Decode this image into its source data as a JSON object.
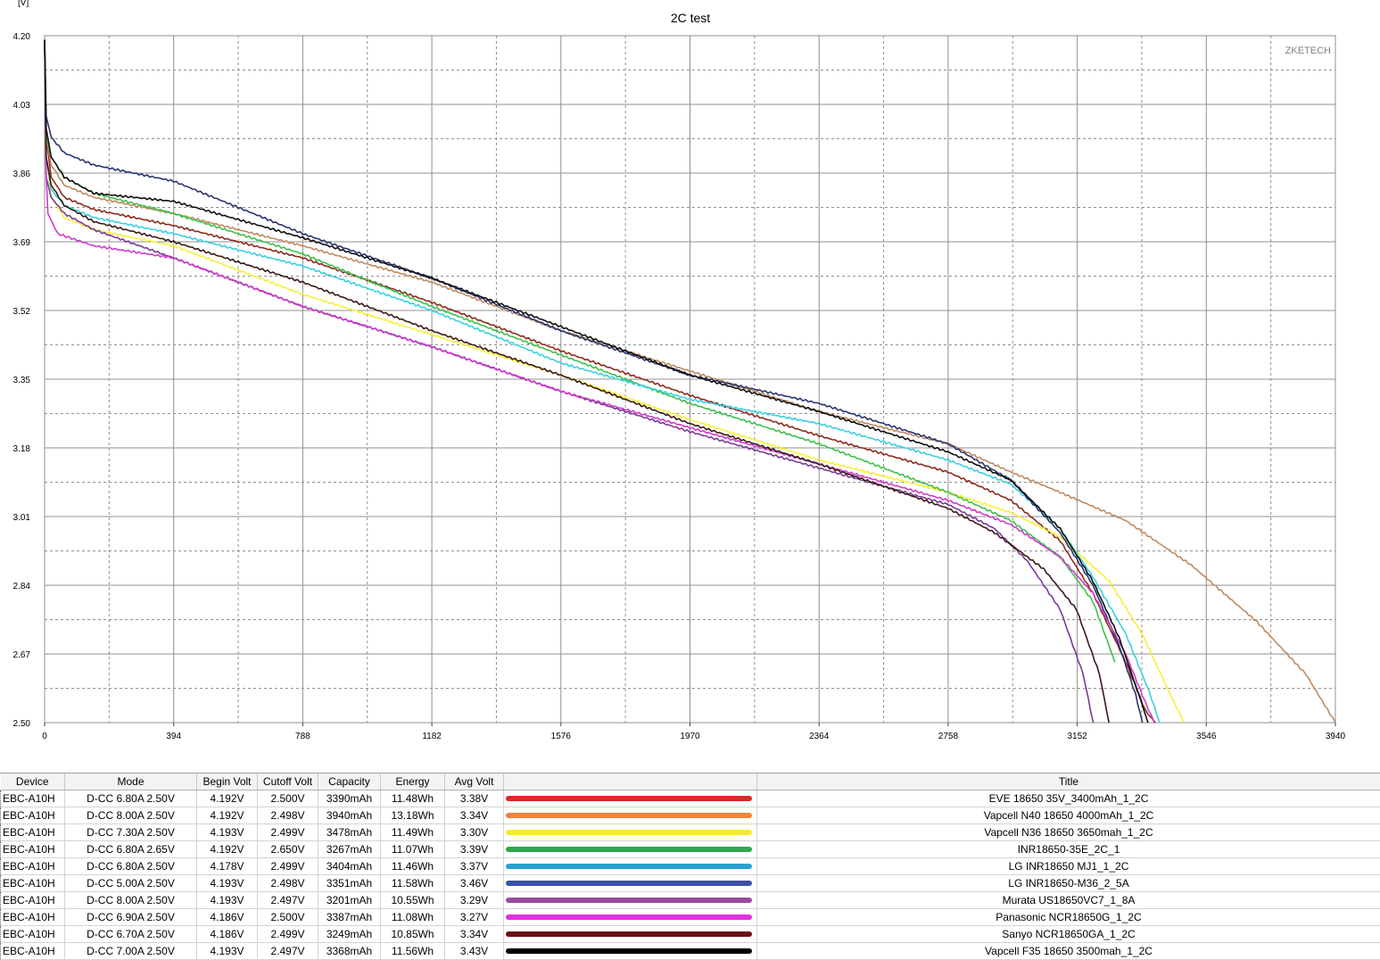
{
  "chart_data": {
    "type": "line",
    "title": "2C test",
    "ylabel": "[V]",
    "xlabel": "",
    "watermark": "ZKETECH",
    "xlim": [
      0,
      3940
    ],
    "ylim": [
      2.5,
      4.2
    ],
    "x_ticks": [
      "0",
      "394",
      "788",
      "1182",
      "1576",
      "1970",
      "2364",
      "2758",
      "3152",
      "3546",
      "3940"
    ],
    "y_ticks": [
      "4.20",
      "4.03",
      "3.86",
      "3.69",
      "3.52",
      "3.35",
      "3.18",
      "3.01",
      "2.84",
      "2.67",
      "2.50"
    ],
    "grid": true,
    "series": [
      {
        "name": "EVE 18650 35V_3400mAh_1_2C",
        "color": "#8b2a1e",
        "points": [
          [
            0,
            4.19
          ],
          [
            5,
            3.95
          ],
          [
            20,
            3.85
          ],
          [
            60,
            3.8
          ],
          [
            150,
            3.77
          ],
          [
            394,
            3.73
          ],
          [
            788,
            3.65
          ],
          [
            1182,
            3.54
          ],
          [
            1576,
            3.42
          ],
          [
            1970,
            3.31
          ],
          [
            2364,
            3.21
          ],
          [
            2758,
            3.12
          ],
          [
            2950,
            3.05
          ],
          [
            3100,
            2.95
          ],
          [
            3200,
            2.82
          ],
          [
            3300,
            2.65
          ],
          [
            3360,
            2.53
          ],
          [
            3390,
            2.5
          ]
        ]
      },
      {
        "name": "Vapcell N40 18650 4000mAh_1_2C",
        "color": "#c08a60",
        "points": [
          [
            0,
            4.19
          ],
          [
            5,
            3.95
          ],
          [
            20,
            3.88
          ],
          [
            60,
            3.83
          ],
          [
            150,
            3.8
          ],
          [
            394,
            3.76
          ],
          [
            788,
            3.68
          ],
          [
            1182,
            3.59
          ],
          [
            1576,
            3.47
          ],
          [
            1970,
            3.37
          ],
          [
            2364,
            3.27
          ],
          [
            2758,
            3.19
          ],
          [
            2950,
            3.12
          ],
          [
            3100,
            3.07
          ],
          [
            3300,
            3.0
          ],
          [
            3500,
            2.89
          ],
          [
            3700,
            2.75
          ],
          [
            3850,
            2.62
          ],
          [
            3940,
            2.5
          ]
        ]
      },
      {
        "name": "Vapcell N36 18650 3650mah_1_2C",
        "color": "#f4f03c",
        "points": [
          [
            0,
            4.19
          ],
          [
            5,
            3.9
          ],
          [
            20,
            3.8
          ],
          [
            60,
            3.75
          ],
          [
            150,
            3.72
          ],
          [
            394,
            3.68
          ],
          [
            788,
            3.56
          ],
          [
            1182,
            3.46
          ],
          [
            1576,
            3.36
          ],
          [
            1970,
            3.25
          ],
          [
            2364,
            3.15
          ],
          [
            2758,
            3.07
          ],
          [
            2950,
            3.02
          ],
          [
            3100,
            2.96
          ],
          [
            3250,
            2.85
          ],
          [
            3350,
            2.72
          ],
          [
            3430,
            2.58
          ],
          [
            3478,
            2.5
          ]
        ]
      },
      {
        "name": "INR18650-35E_2C_1",
        "color": "#3ec04a",
        "points": [
          [
            0,
            4.19
          ],
          [
            5,
            3.95
          ],
          [
            20,
            3.9
          ],
          [
            60,
            3.85
          ],
          [
            150,
            3.81
          ],
          [
            394,
            3.76
          ],
          [
            788,
            3.66
          ],
          [
            1182,
            3.53
          ],
          [
            1576,
            3.41
          ],
          [
            1970,
            3.29
          ],
          [
            2364,
            3.19
          ],
          [
            2758,
            3.07
          ],
          [
            2950,
            3.0
          ],
          [
            3100,
            2.91
          ],
          [
            3200,
            2.8
          ],
          [
            3267,
            2.65
          ]
        ]
      },
      {
        "name": "LG INR18650 MJ1_1_2C",
        "color": "#3ad0e0",
        "points": [
          [
            0,
            4.19
          ],
          [
            5,
            3.9
          ],
          [
            20,
            3.82
          ],
          [
            60,
            3.78
          ],
          [
            150,
            3.75
          ],
          [
            394,
            3.71
          ],
          [
            788,
            3.63
          ],
          [
            1182,
            3.52
          ],
          [
            1576,
            3.39
          ],
          [
            1970,
            3.3
          ],
          [
            2364,
            3.24
          ],
          [
            2758,
            3.15
          ],
          [
            2950,
            3.09
          ],
          [
            3100,
            2.98
          ],
          [
            3200,
            2.86
          ],
          [
            3300,
            2.72
          ],
          [
            3370,
            2.58
          ],
          [
            3404,
            2.5
          ]
        ]
      },
      {
        "name": "LG INR18650-M36_2_5A",
        "color": "#2a3570",
        "points": [
          [
            0,
            4.19
          ],
          [
            5,
            4.0
          ],
          [
            20,
            3.95
          ],
          [
            60,
            3.91
          ],
          [
            150,
            3.88
          ],
          [
            394,
            3.84
          ],
          [
            788,
            3.71
          ],
          [
            1182,
            3.6
          ],
          [
            1576,
            3.47
          ],
          [
            1970,
            3.36
          ],
          [
            2364,
            3.29
          ],
          [
            2758,
            3.19
          ],
          [
            2950,
            3.1
          ],
          [
            3100,
            2.97
          ],
          [
            3200,
            2.84
          ],
          [
            3280,
            2.69
          ],
          [
            3330,
            2.57
          ],
          [
            3351,
            2.5
          ]
        ]
      },
      {
        "name": "Murata US18650VC7_1_8A",
        "color": "#7a3a98",
        "points": [
          [
            0,
            4.19
          ],
          [
            5,
            3.85
          ],
          [
            20,
            3.8
          ],
          [
            60,
            3.76
          ],
          [
            150,
            3.72
          ],
          [
            394,
            3.65
          ],
          [
            788,
            3.53
          ],
          [
            1182,
            3.43
          ],
          [
            1576,
            3.32
          ],
          [
            1970,
            3.22
          ],
          [
            2364,
            3.13
          ],
          [
            2758,
            3.04
          ],
          [
            2900,
            2.98
          ],
          [
            3000,
            2.9
          ],
          [
            3100,
            2.78
          ],
          [
            3170,
            2.62
          ],
          [
            3201,
            2.5
          ]
        ]
      },
      {
        "name": "Panasonic NCR18650G_1_2C",
        "color": "#cc3ccc",
        "points": [
          [
            0,
            4.19
          ],
          [
            5,
            3.85
          ],
          [
            10,
            3.76
          ],
          [
            40,
            3.71
          ],
          [
            150,
            3.68
          ],
          [
            394,
            3.65
          ],
          [
            788,
            3.53
          ],
          [
            1182,
            3.43
          ],
          [
            1576,
            3.32
          ],
          [
            1970,
            3.23
          ],
          [
            2364,
            3.14
          ],
          [
            2758,
            3.05
          ],
          [
            2950,
            2.99
          ],
          [
            3100,
            2.91
          ],
          [
            3200,
            2.82
          ],
          [
            3300,
            2.67
          ],
          [
            3360,
            2.55
          ],
          [
            3387,
            2.5
          ]
        ]
      },
      {
        "name": "Sanyo NCR18650GA_1_2C",
        "color": "#3a1a14",
        "points": [
          [
            0,
            4.19
          ],
          [
            5,
            3.9
          ],
          [
            20,
            3.83
          ],
          [
            60,
            3.78
          ],
          [
            150,
            3.74
          ],
          [
            394,
            3.69
          ],
          [
            788,
            3.59
          ],
          [
            1182,
            3.47
          ],
          [
            1576,
            3.36
          ],
          [
            1970,
            3.24
          ],
          [
            2364,
            3.14
          ],
          [
            2758,
            3.03
          ],
          [
            2900,
            2.97
          ],
          [
            3050,
            2.88
          ],
          [
            3150,
            2.78
          ],
          [
            3220,
            2.62
          ],
          [
            3249,
            2.5
          ]
        ]
      },
      {
        "name": "Vapcell F35 18650 3500mah_1_2C",
        "color": "#101010",
        "points": [
          [
            0,
            4.19
          ],
          [
            5,
            3.97
          ],
          [
            20,
            3.9
          ],
          [
            60,
            3.85
          ],
          [
            150,
            3.81
          ],
          [
            394,
            3.79
          ],
          [
            788,
            3.7
          ],
          [
            1182,
            3.6
          ],
          [
            1576,
            3.48
          ],
          [
            1970,
            3.36
          ],
          [
            2364,
            3.27
          ],
          [
            2758,
            3.17
          ],
          [
            2950,
            3.1
          ],
          [
            3100,
            2.98
          ],
          [
            3200,
            2.85
          ],
          [
            3280,
            2.71
          ],
          [
            3340,
            2.57
          ],
          [
            3368,
            2.5
          ]
        ]
      }
    ]
  },
  "table": {
    "headers": {
      "device": "Device",
      "mode": "Mode",
      "begin_volt": "Begin Volt",
      "cutoff_volt": "Cutoff Volt",
      "capacity": "Capacity",
      "energy": "Energy",
      "avg_volt": "Avg Volt",
      "title": "Title"
    },
    "rows": [
      {
        "device": "EBC-A10H",
        "mode": "D-CC  6.80A  2.50V",
        "begin_volt": "4.192V",
        "cutoff_volt": "2.500V",
        "capacity": "3390mAh",
        "energy": "11.48Wh",
        "avg_volt": "3.38V",
        "swatch": "#d8282c",
        "title": "EVE 18650 35V_3400mAh_1_2C"
      },
      {
        "device": "EBC-A10H",
        "mode": "D-CC  8.00A  2.50V",
        "begin_volt": "4.192V",
        "cutoff_volt": "2.498V",
        "capacity": "3940mAh",
        "energy": "13.18Wh",
        "avg_volt": "3.34V",
        "swatch": "#f0843c",
        "title": "Vapcell N40 18650 4000mAh_1_2C"
      },
      {
        "device": "EBC-A10H",
        "mode": "D-CC  7.30A  2.50V",
        "begin_volt": "4.193V",
        "cutoff_volt": "2.499V",
        "capacity": "3478mAh",
        "energy": "11.49Wh",
        "avg_volt": "3.30V",
        "swatch": "#f4ec30",
        "title": "Vapcell N36 18650 3650mah_1_2C"
      },
      {
        "device": "EBC-A10H",
        "mode": "D-CC  6.80A  2.65V",
        "begin_volt": "4.192V",
        "cutoff_volt": "2.650V",
        "capacity": "3267mAh",
        "energy": "11.07Wh",
        "avg_volt": "3.39V",
        "swatch": "#2ea84a",
        "title": "INR18650-35E_2C_1"
      },
      {
        "device": "EBC-A10H",
        "mode": "D-CC  6.80A  2.50V",
        "begin_volt": "4.178V",
        "cutoff_volt": "2.499V",
        "capacity": "3404mAh",
        "energy": "11.46Wh",
        "avg_volt": "3.37V",
        "swatch": "#2aa0d0",
        "title": "LG INR18650 MJ1_1_2C"
      },
      {
        "device": "EBC-A10H",
        "mode": "D-CC  5.00A  2.50V",
        "begin_volt": "4.193V",
        "cutoff_volt": "2.498V",
        "capacity": "3351mAh",
        "energy": "11.58Wh",
        "avg_volt": "3.46V",
        "swatch": "#3c50a8",
        "title": "LG INR18650-M36_2_5A"
      },
      {
        "device": "EBC-A10H",
        "mode": "D-CC  8.00A  2.50V",
        "begin_volt": "4.193V",
        "cutoff_volt": "2.497V",
        "capacity": "3201mAh",
        "energy": "10.55Wh",
        "avg_volt": "3.29V",
        "swatch": "#9a4aa0",
        "title": "Murata US18650VC7_1_8A"
      },
      {
        "device": "EBC-A10H",
        "mode": "D-CC  6.90A  2.50V",
        "begin_volt": "4.186V",
        "cutoff_volt": "2.500V",
        "capacity": "3387mAh",
        "energy": "11.08Wh",
        "avg_volt": "3.27V",
        "swatch": "#e030e0",
        "title": "Panasonic NCR18650G_1_2C"
      },
      {
        "device": "EBC-A10H",
        "mode": "D-CC  6.70A  2.50V",
        "begin_volt": "4.186V",
        "cutoff_volt": "2.499V",
        "capacity": "3249mAh",
        "energy": "10.85Wh",
        "avg_volt": "3.34V",
        "swatch": "#6a1018",
        "title": "Sanyo NCR18650GA_1_2C"
      },
      {
        "device": "EBC-A10H",
        "mode": "D-CC  7.00A  2.50V",
        "begin_volt": "4.193V",
        "cutoff_volt": "2.497V",
        "capacity": "3368mAh",
        "energy": "11.56Wh",
        "avg_volt": "3.43V",
        "swatch": "#000000",
        "title": "Vapcell F35 18650 3500mah_1_2C"
      }
    ]
  }
}
